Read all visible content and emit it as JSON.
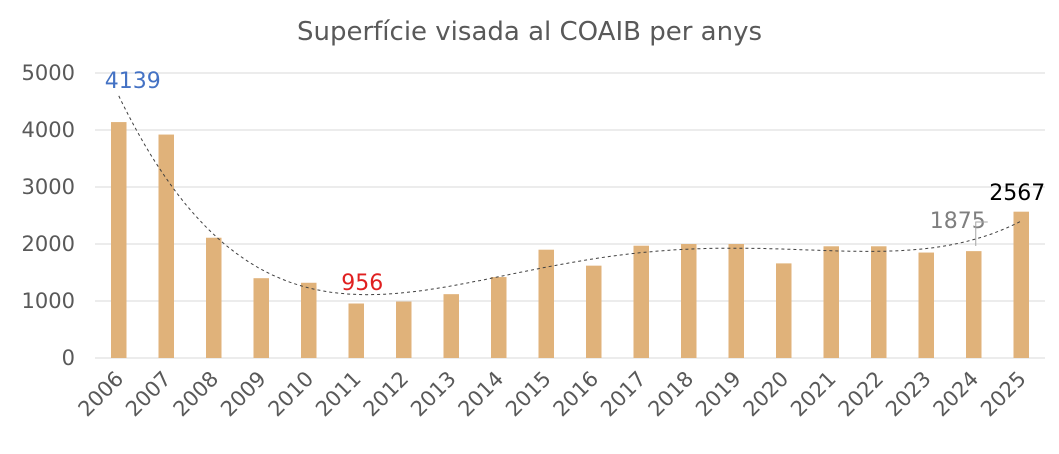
{
  "chart_data": {
    "type": "bar",
    "title": "Superfície visada al COAIB per anys",
    "xlabel": "",
    "ylabel": "",
    "ylim": [
      0,
      5000
    ],
    "yticks": [
      0,
      1000,
      2000,
      3000,
      4000,
      5000
    ],
    "grid": true,
    "legend": "none",
    "bar_color": "#e0b27a",
    "categories": [
      "2006",
      "2007",
      "2008",
      "2009",
      "2010",
      "2011",
      "2012",
      "2013",
      "2014",
      "2015",
      "2016",
      "2017",
      "2018",
      "2019",
      "2020",
      "2021",
      "2022",
      "2023",
      "2024",
      "2025"
    ],
    "values": [
      4139,
      3920,
      2110,
      1400,
      1320,
      956,
      990,
      1120,
      1420,
      1900,
      1620,
      1970,
      2000,
      2000,
      1660,
      1960,
      1960,
      1850,
      1875,
      2567
    ],
    "trendline": {
      "style": "dashed",
      "type": "polynomial"
    },
    "annotations": [
      {
        "label": "4139",
        "category": "2006",
        "color": "#4472c4"
      },
      {
        "label": "956",
        "category": "2011",
        "color": "#e02020"
      },
      {
        "label": "1875",
        "category": "2024",
        "color": "#7f7f7f"
      },
      {
        "label": "2567",
        "category": "2025",
        "color": "#000000"
      }
    ]
  }
}
